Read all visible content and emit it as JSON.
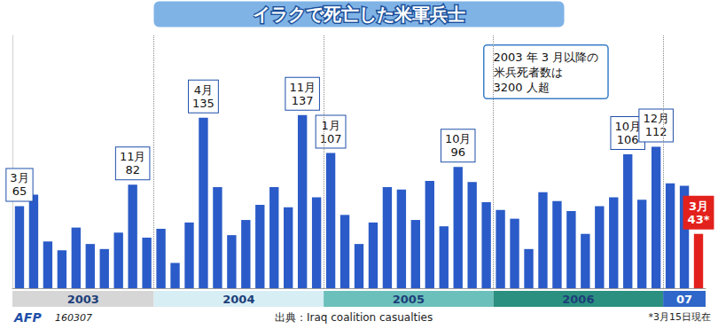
{
  "chart_data": {
    "type": "bar",
    "title": "イラクで死亡した米軍兵士",
    "categories": [
      null,
      null,
      null,
      null,
      null,
      null,
      null,
      null,
      null,
      null,
      null,
      null,
      null,
      null,
      null,
      null,
      null,
      null,
      null,
      null,
      null,
      null,
      null,
      null,
      null,
      null,
      null,
      null,
      null,
      null,
      null,
      null,
      null,
      null,
      null,
      null,
      null,
      null,
      null,
      null,
      null,
      null,
      null,
      null,
      null,
      null,
      null,
      null,
      null
    ],
    "values": [
      65,
      74,
      37,
      30,
      48,
      35,
      31,
      44,
      82,
      40,
      47,
      20,
      52,
      135,
      80,
      42,
      54,
      66,
      80,
      64,
      137,
      72,
      107,
      58,
      35,
      52,
      80,
      78,
      54,
      85,
      49,
      96,
      84,
      68,
      62,
      55,
      31,
      76,
      69,
      61,
      43,
      65,
      72,
      106,
      70,
      112,
      83,
      81,
      43
    ],
    "colors": [
      "#2a5bc8",
      "#2a5bc8",
      "#2a5bc8",
      "#2a5bc8",
      "#2a5bc8",
      "#2a5bc8",
      "#2a5bc8",
      "#2a5bc8",
      "#2a5bc8",
      "#2a5bc8",
      "#2a5bc8",
      "#2a5bc8",
      "#2a5bc8",
      "#2a5bc8",
      "#2a5bc8",
      "#2a5bc8",
      "#2a5bc8",
      "#2a5bc8",
      "#2a5bc8",
      "#2a5bc8",
      "#2a5bc8",
      "#2a5bc8",
      "#2a5bc8",
      "#2a5bc8",
      "#2a5bc8",
      "#2a5bc8",
      "#2a5bc8",
      "#2a5bc8",
      "#2a5bc8",
      "#2a5bc8",
      "#2a5bc8",
      "#2a5bc8",
      "#2a5bc8",
      "#2a5bc8",
      "#2a5bc8",
      "#2a5bc8",
      "#2a5bc8",
      "#2a5bc8",
      "#2a5bc8",
      "#2a5bc8",
      "#2a5bc8",
      "#2a5bc8",
      "#2a5bc8",
      "#2a5bc8",
      "#2a5bc8",
      "#2a5bc8",
      "#2a5bc8",
      "#2a5bc8",
      "#e3211c"
    ],
    "ylim": [
      0,
      200
    ],
    "grid": false,
    "tick_labels": false,
    "callouts": [
      {
        "index": 0,
        "label": "3月"
      },
      {
        "index": 8,
        "label": "11月"
      },
      {
        "index": 13,
        "label": "4月"
      },
      {
        "index": 20,
        "label": "11月"
      },
      {
        "index": 22,
        "label": "1月"
      },
      {
        "index": 31,
        "label": "10月"
      },
      {
        "index": 43,
        "label": "10月"
      },
      {
        "index": 45,
        "label": "12月"
      },
      {
        "index": 48,
        "label": "3月",
        "value_label": "43*"
      }
    ],
    "year_groups": [
      {
        "label": "2003",
        "months": 10,
        "color": "#d6d6d6"
      },
      {
        "label": "2004",
        "months": 12,
        "color": "#d8eef5"
      },
      {
        "label": "2005",
        "months": 12,
        "color": "#6cc0bb"
      },
      {
        "label": "2006",
        "months": 12,
        "color": "#2b9080"
      },
      {
        "label": "07",
        "months": 3,
        "color": "#2f66c9"
      }
    ],
    "annotation": "2003 年 3 月以降の\n米兵死者数は\n3200 人超",
    "source": "出典：Iraq coalition casualties",
    "credit": "AFP",
    "date_code": "160307",
    "footnote": "*3月15日現在"
  }
}
